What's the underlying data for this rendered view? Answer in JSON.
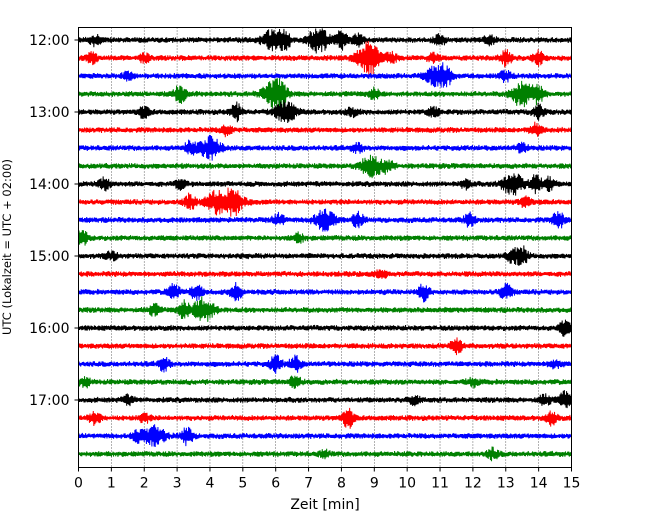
{
  "chart_data": {
    "type": "line",
    "subtype": "seismogram-helicorder",
    "xlabel": "Zeit  [min]",
    "ylabel": "UTC (Lokalzeit = UTC + 02:00)",
    "xlim": [
      0,
      15
    ],
    "x_ticks": [
      "0",
      "1",
      "2",
      "3",
      "4",
      "5",
      "6",
      "7",
      "8",
      "9",
      "10",
      "11",
      "12",
      "13",
      "14",
      "15"
    ],
    "y_ticks": [
      "12:00",
      "13:00",
      "14:00",
      "15:00",
      "16:00",
      "17:00"
    ],
    "vertical_grid": "dotted",
    "trace_colors": [
      "#000000",
      "#ff0000",
      "#0000ff",
      "#008000"
    ],
    "traces": [
      {
        "start": "12:00",
        "color": "#000000",
        "events": [
          [
            0.5,
            5
          ],
          [
            5.9,
            10
          ],
          [
            6.3,
            8
          ],
          [
            7.3,
            12
          ],
          [
            8,
            9
          ],
          [
            8.5,
            6
          ],
          [
            11,
            5
          ],
          [
            12.5,
            5
          ]
        ]
      },
      {
        "start": "12:15",
        "color": "#ff0000",
        "events": [
          [
            0.4,
            5
          ],
          [
            2,
            4
          ],
          [
            8.8,
            18
          ],
          [
            9.5,
            6
          ],
          [
            10.8,
            4
          ],
          [
            13,
            7
          ],
          [
            14,
            6
          ]
        ]
      },
      {
        "start": "12:30",
        "color": "#0000ff",
        "events": [
          [
            1.5,
            4
          ],
          [
            10.9,
            10
          ],
          [
            11.2,
            7
          ],
          [
            13,
            5
          ]
        ]
      },
      {
        "start": "12:45",
        "color": "#008000",
        "events": [
          [
            3.1,
            9
          ],
          [
            5.9,
            12
          ],
          [
            6.2,
            8
          ],
          [
            9,
            5
          ],
          [
            13.5,
            12
          ],
          [
            14,
            8
          ]
        ]
      },
      {
        "start": "13:00",
        "color": "#000000",
        "events": [
          [
            2,
            5
          ],
          [
            4.8,
            8
          ],
          [
            6.3,
            10
          ],
          [
            8.3,
            4
          ],
          [
            10.8,
            5
          ],
          [
            14,
            7
          ]
        ]
      },
      {
        "start": "13:15",
        "color": "#ff0000",
        "events": [
          [
            4.5,
            5
          ],
          [
            13.9,
            6
          ]
        ]
      },
      {
        "start": "13:30",
        "color": "#0000ff",
        "events": [
          [
            3.4,
            6
          ],
          [
            4,
            11
          ],
          [
            8.5,
            4
          ],
          [
            13.5,
            4
          ]
        ]
      },
      {
        "start": "13:45",
        "color": "#008000",
        "events": [
          [
            8.9,
            10
          ],
          [
            9.4,
            6
          ]
        ]
      },
      {
        "start": "14:00",
        "color": "#000000",
        "events": [
          [
            0.8,
            6
          ],
          [
            3.1,
            4
          ],
          [
            11.8,
            4
          ],
          [
            13.2,
            11
          ],
          [
            13.9,
            9
          ],
          [
            14.3,
            6
          ]
        ]
      },
      {
        "start": "14:15",
        "color": "#ff0000",
        "events": [
          [
            3.4,
            7
          ],
          [
            4.2,
            10
          ],
          [
            4.7,
            12
          ],
          [
            13.6,
            5
          ]
        ]
      },
      {
        "start": "14:30",
        "color": "#0000ff",
        "events": [
          [
            6.1,
            6
          ],
          [
            7.5,
            10
          ],
          [
            8.5,
            7
          ],
          [
            11.9,
            6
          ],
          [
            14.6,
            8
          ]
        ]
      },
      {
        "start": "14:45",
        "color": "#008000",
        "events": [
          [
            0.1,
            8
          ],
          [
            6.7,
            4
          ]
        ]
      },
      {
        "start": "15:00",
        "color": "#000000",
        "events": [
          [
            1,
            4
          ],
          [
            13.2,
            6
          ],
          [
            13.5,
            9
          ]
        ]
      },
      {
        "start": "15:15",
        "color": "#ff0000",
        "events": [
          [
            9.2,
            4
          ]
        ]
      },
      {
        "start": "15:30",
        "color": "#0000ff",
        "events": [
          [
            2.9,
            9
          ],
          [
            3.6,
            7
          ],
          [
            4.8,
            8
          ],
          [
            10.5,
            8
          ],
          [
            13,
            8
          ]
        ]
      },
      {
        "start": "15:45",
        "color": "#008000",
        "events": [
          [
            2.3,
            5
          ],
          [
            3.2,
            8
          ],
          [
            3.8,
            12
          ]
        ]
      },
      {
        "start": "16:00",
        "color": "#000000",
        "events": [
          [
            14.8,
            7
          ]
        ]
      },
      {
        "start": "16:15",
        "color": "#ff0000",
        "events": [
          [
            11.5,
            8
          ]
        ]
      },
      {
        "start": "16:30",
        "color": "#0000ff",
        "events": [
          [
            2.6,
            6
          ],
          [
            6,
            8
          ],
          [
            6.6,
            7
          ],
          [
            14.5,
            4
          ]
        ]
      },
      {
        "start": "16:45",
        "color": "#008000",
        "events": [
          [
            0.2,
            4
          ],
          [
            6.6,
            6
          ],
          [
            12,
            4
          ]
        ]
      },
      {
        "start": "17:00",
        "color": "#000000",
        "events": [
          [
            1.5,
            4
          ],
          [
            10.2,
            4
          ],
          [
            14.2,
            5
          ],
          [
            14.8,
            8
          ]
        ]
      },
      {
        "start": "17:15",
        "color": "#ff0000",
        "events": [
          [
            0.5,
            6
          ],
          [
            2,
            4
          ],
          [
            8.2,
            9
          ],
          [
            14.4,
            6
          ]
        ]
      },
      {
        "start": "17:30",
        "color": "#0000ff",
        "events": [
          [
            1.8,
            5
          ],
          [
            2.3,
            10
          ],
          [
            3.3,
            8
          ]
        ]
      },
      {
        "start": "17:45",
        "color": "#008000",
        "events": [
          [
            7.5,
            3
          ],
          [
            12.6,
            5
          ]
        ]
      }
    ]
  }
}
